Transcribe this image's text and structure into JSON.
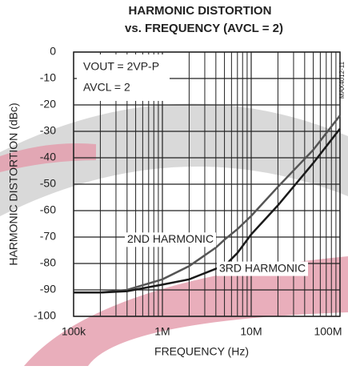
{
  "chart_data": {
    "type": "line",
    "title": "HARMONIC DISTORTION",
    "subtitle": "vs. FREQUENCY (AVCL = 2)",
    "xlabel": "FREQUENCY (Hz)",
    "ylabel": "HARMONIC DISTORTION (dBc)",
    "annotations": [
      "VOUT = 2VP-P",
      "AVCL = 2",
      "MAX4012-11"
    ],
    "x": [
      100000,
      200000,
      400000,
      1000000,
      2000000,
      4000000,
      5000000,
      7000000,
      10000000,
      20000000,
      50000000,
      100000000
    ],
    "series": [
      {
        "name": "2ND HARMONIC",
        "color": "#555555",
        "values": [
          -91,
          -91,
          -90,
          -86,
          -81,
          -74,
          -71,
          -67,
          -62,
          -51,
          -37,
          -24
        ]
      },
      {
        "name": "3RD HARMONIC",
        "color": "#1a1a1a",
        "values": [
          -91,
          -91,
          -90.5,
          -88,
          -86,
          -82,
          -81,
          -76,
          -69,
          -58,
          -42,
          -29
        ]
      }
    ],
    "xscale": "log",
    "xlim": [
      100000,
      100000000
    ],
    "ylim": [
      -100,
      0
    ],
    "xticks": [
      {
        "value": 100000,
        "label": "100k"
      },
      {
        "value": 1000000,
        "label": "1M"
      },
      {
        "value": 10000000,
        "label": "10M"
      },
      {
        "value": 100000000,
        "label": "100M"
      }
    ],
    "yticks": [
      0,
      -10,
      -20,
      -30,
      -40,
      -50,
      -60,
      -70,
      -80,
      -90,
      -100
    ],
    "grid": true
  }
}
